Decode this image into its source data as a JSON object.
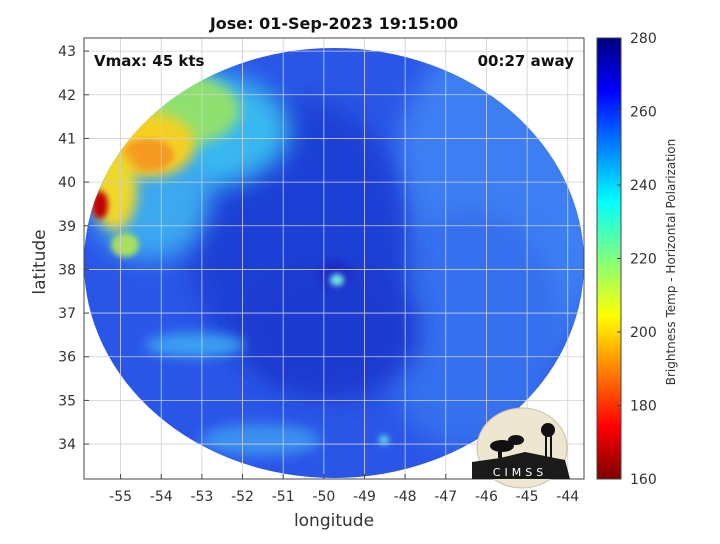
{
  "title": "Jose: 01-Sep-2023 19:15:00",
  "vmax_label": "Vmax: 45 kts",
  "time_away_label": "00:27 away",
  "x_axis": {
    "label": "longitude",
    "range": [
      -55.9,
      -43.6
    ],
    "ticks": [
      -55,
      -54,
      -53,
      -52,
      -51,
      -50,
      -49,
      -48,
      -47,
      -46,
      -45,
      -44
    ]
  },
  "y_axis": {
    "label": "latitude",
    "range": [
      33.2,
      43.3
    ],
    "ticks": [
      34,
      35,
      36,
      37,
      38,
      39,
      40,
      41,
      42,
      43
    ]
  },
  "colorbar": {
    "label": "Brightness Temp - Horizontal Polarization",
    "range": [
      160,
      280
    ],
    "ticks": [
      160,
      180,
      200,
      220,
      240,
      260,
      280
    ],
    "colormap": "jet"
  },
  "storm_center": {
    "lon": -49.5,
    "lat": 37.8
  },
  "logo_text": "CIMSS",
  "grid": true,
  "colors": {
    "background_field": "#1f4fe0",
    "warm_core_yellow": "#f0e020",
    "hot_spot_red": "#c00000"
  }
}
